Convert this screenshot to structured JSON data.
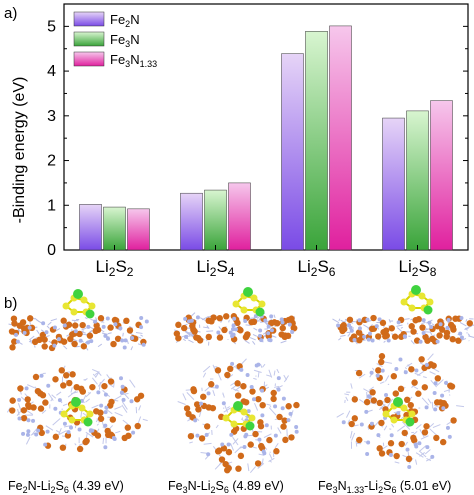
{
  "panel_a_label": "a)",
  "panel_b_label": "b)",
  "colors": {
    "fe2n_light": "#e6d4f7",
    "fe2n_dark": "#7a4be6",
    "fe3n_light": "#d8f5d0",
    "fe3n_dark": "#3aa43a",
    "fe3n133_light": "#f6c7ec",
    "fe3n133_dark": "#e0209e",
    "fe_atom": "#d06a1a",
    "n_atom": "#aab4e8",
    "s_atom": "#e8e633",
    "li_atom": "#3fd33f"
  },
  "chart_data": {
    "type": "bar",
    "categories": [
      "Li2S2",
      "Li2S4",
      "Li2S6",
      "Li2S8"
    ],
    "category_labels": [
      {
        "main": "Li",
        "sub1": "2",
        "mid": "S",
        "sub2": "2"
      },
      {
        "main": "Li",
        "sub1": "2",
        "mid": "S",
        "sub2": "4"
      },
      {
        "main": "Li",
        "sub1": "2",
        "mid": "S",
        "sub2": "6"
      },
      {
        "main": "Li",
        "sub1": "2",
        "mid": "S",
        "sub2": "8"
      }
    ],
    "series": [
      {
        "name": "Fe2N",
        "legend": {
          "base": "Fe",
          "sub": "2",
          "tail": "N",
          "sub2": ""
        },
        "values": [
          1.02,
          1.27,
          4.39,
          2.95
        ]
      },
      {
        "name": "Fe3N",
        "legend": {
          "base": "Fe",
          "sub": "3",
          "tail": "N",
          "sub2": ""
        },
        "values": [
          0.96,
          1.34,
          4.89,
          3.11
        ]
      },
      {
        "name": "Fe3N1.33",
        "legend": {
          "base": "Fe",
          "sub": "3",
          "tail": "N",
          "sub2": "1.33"
        },
        "values": [
          0.92,
          1.5,
          5.01,
          3.34
        ]
      }
    ],
    "ylabel": "-Binding energy (eV)",
    "ylim": [
      0,
      5.5
    ],
    "yticks": [
      "0",
      "1",
      "2",
      "3",
      "4",
      "5"
    ],
    "legend_position": "top-left"
  },
  "captions": [
    {
      "pre": "Fe",
      "s1": "2",
      "mid": "N-Li",
      "s2": "2",
      "mid2": "S",
      "s3": "6",
      "post": " (4.39 eV)"
    },
    {
      "pre": "Fe",
      "s1": "3",
      "mid": "N-Li",
      "s2": "2",
      "mid2": "S",
      "s3": "6",
      "post": " (4.89 eV)"
    },
    {
      "pre": "Fe",
      "s1": "3",
      "mid": "N",
      "s1b": "1.33",
      "mid1b": "-Li",
      "s2": "2",
      "mid2": "S",
      "s3": "6",
      "post": " (5.01 eV)"
    }
  ]
}
